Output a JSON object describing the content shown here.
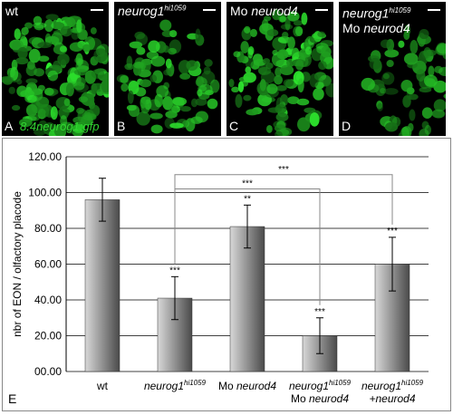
{
  "panels": [
    {
      "id": "A",
      "letter": "A",
      "title": "wt",
      "reporter": "8.4neurog1:gfp"
    },
    {
      "id": "B",
      "letter": "B",
      "title_main": "neurog1",
      "title_sup": "hi1059"
    },
    {
      "id": "C",
      "letter": "C",
      "title_prefix": "Mo ",
      "title_main": "neurod4"
    },
    {
      "id": "D",
      "letter": "D",
      "title_main": "neurog1",
      "title_sup": "hi1059",
      "title_line2_prefix": "Mo ",
      "title_line2_main": "neurod4"
    }
  ],
  "colors": {
    "panel_bg": "#000000",
    "cell_green": "#39e039",
    "bar_dark": "#4a4a4a",
    "bar_light": "#d8d8d8"
  },
  "chart_data": {
    "type": "bar",
    "panel_letter": "E",
    "ylabel": "nbr of EON / olfactory placode",
    "ylim": [
      0,
      120
    ],
    "yticks": [
      "00.00",
      "20.00",
      "40.00",
      "60.00",
      "80.00",
      "100.00",
      "120.00"
    ],
    "categories": [
      {
        "main": "wt"
      },
      {
        "main": "neurog1",
        "sup": "hi1059"
      },
      {
        "prefix": "Mo ",
        "main": "neurod4"
      },
      {
        "main": "neurog1",
        "sup": "hi1059",
        "line2_prefix": "Mo ",
        "line2_main": "neurod4"
      },
      {
        "main": "neurog1",
        "sup": "hi1059",
        "line2_main": "+neurod4"
      }
    ],
    "values": [
      96,
      41,
      81,
      20,
      60
    ],
    "errors": [
      12,
      12,
      12,
      10,
      15
    ],
    "significance": [
      "",
      "***",
      "**",
      "***",
      "***"
    ],
    "brackets": [
      {
        "from": 1,
        "to": 3,
        "label": "***"
      },
      {
        "from": 1,
        "to": 4,
        "label": "***"
      }
    ],
    "grid": true
  }
}
